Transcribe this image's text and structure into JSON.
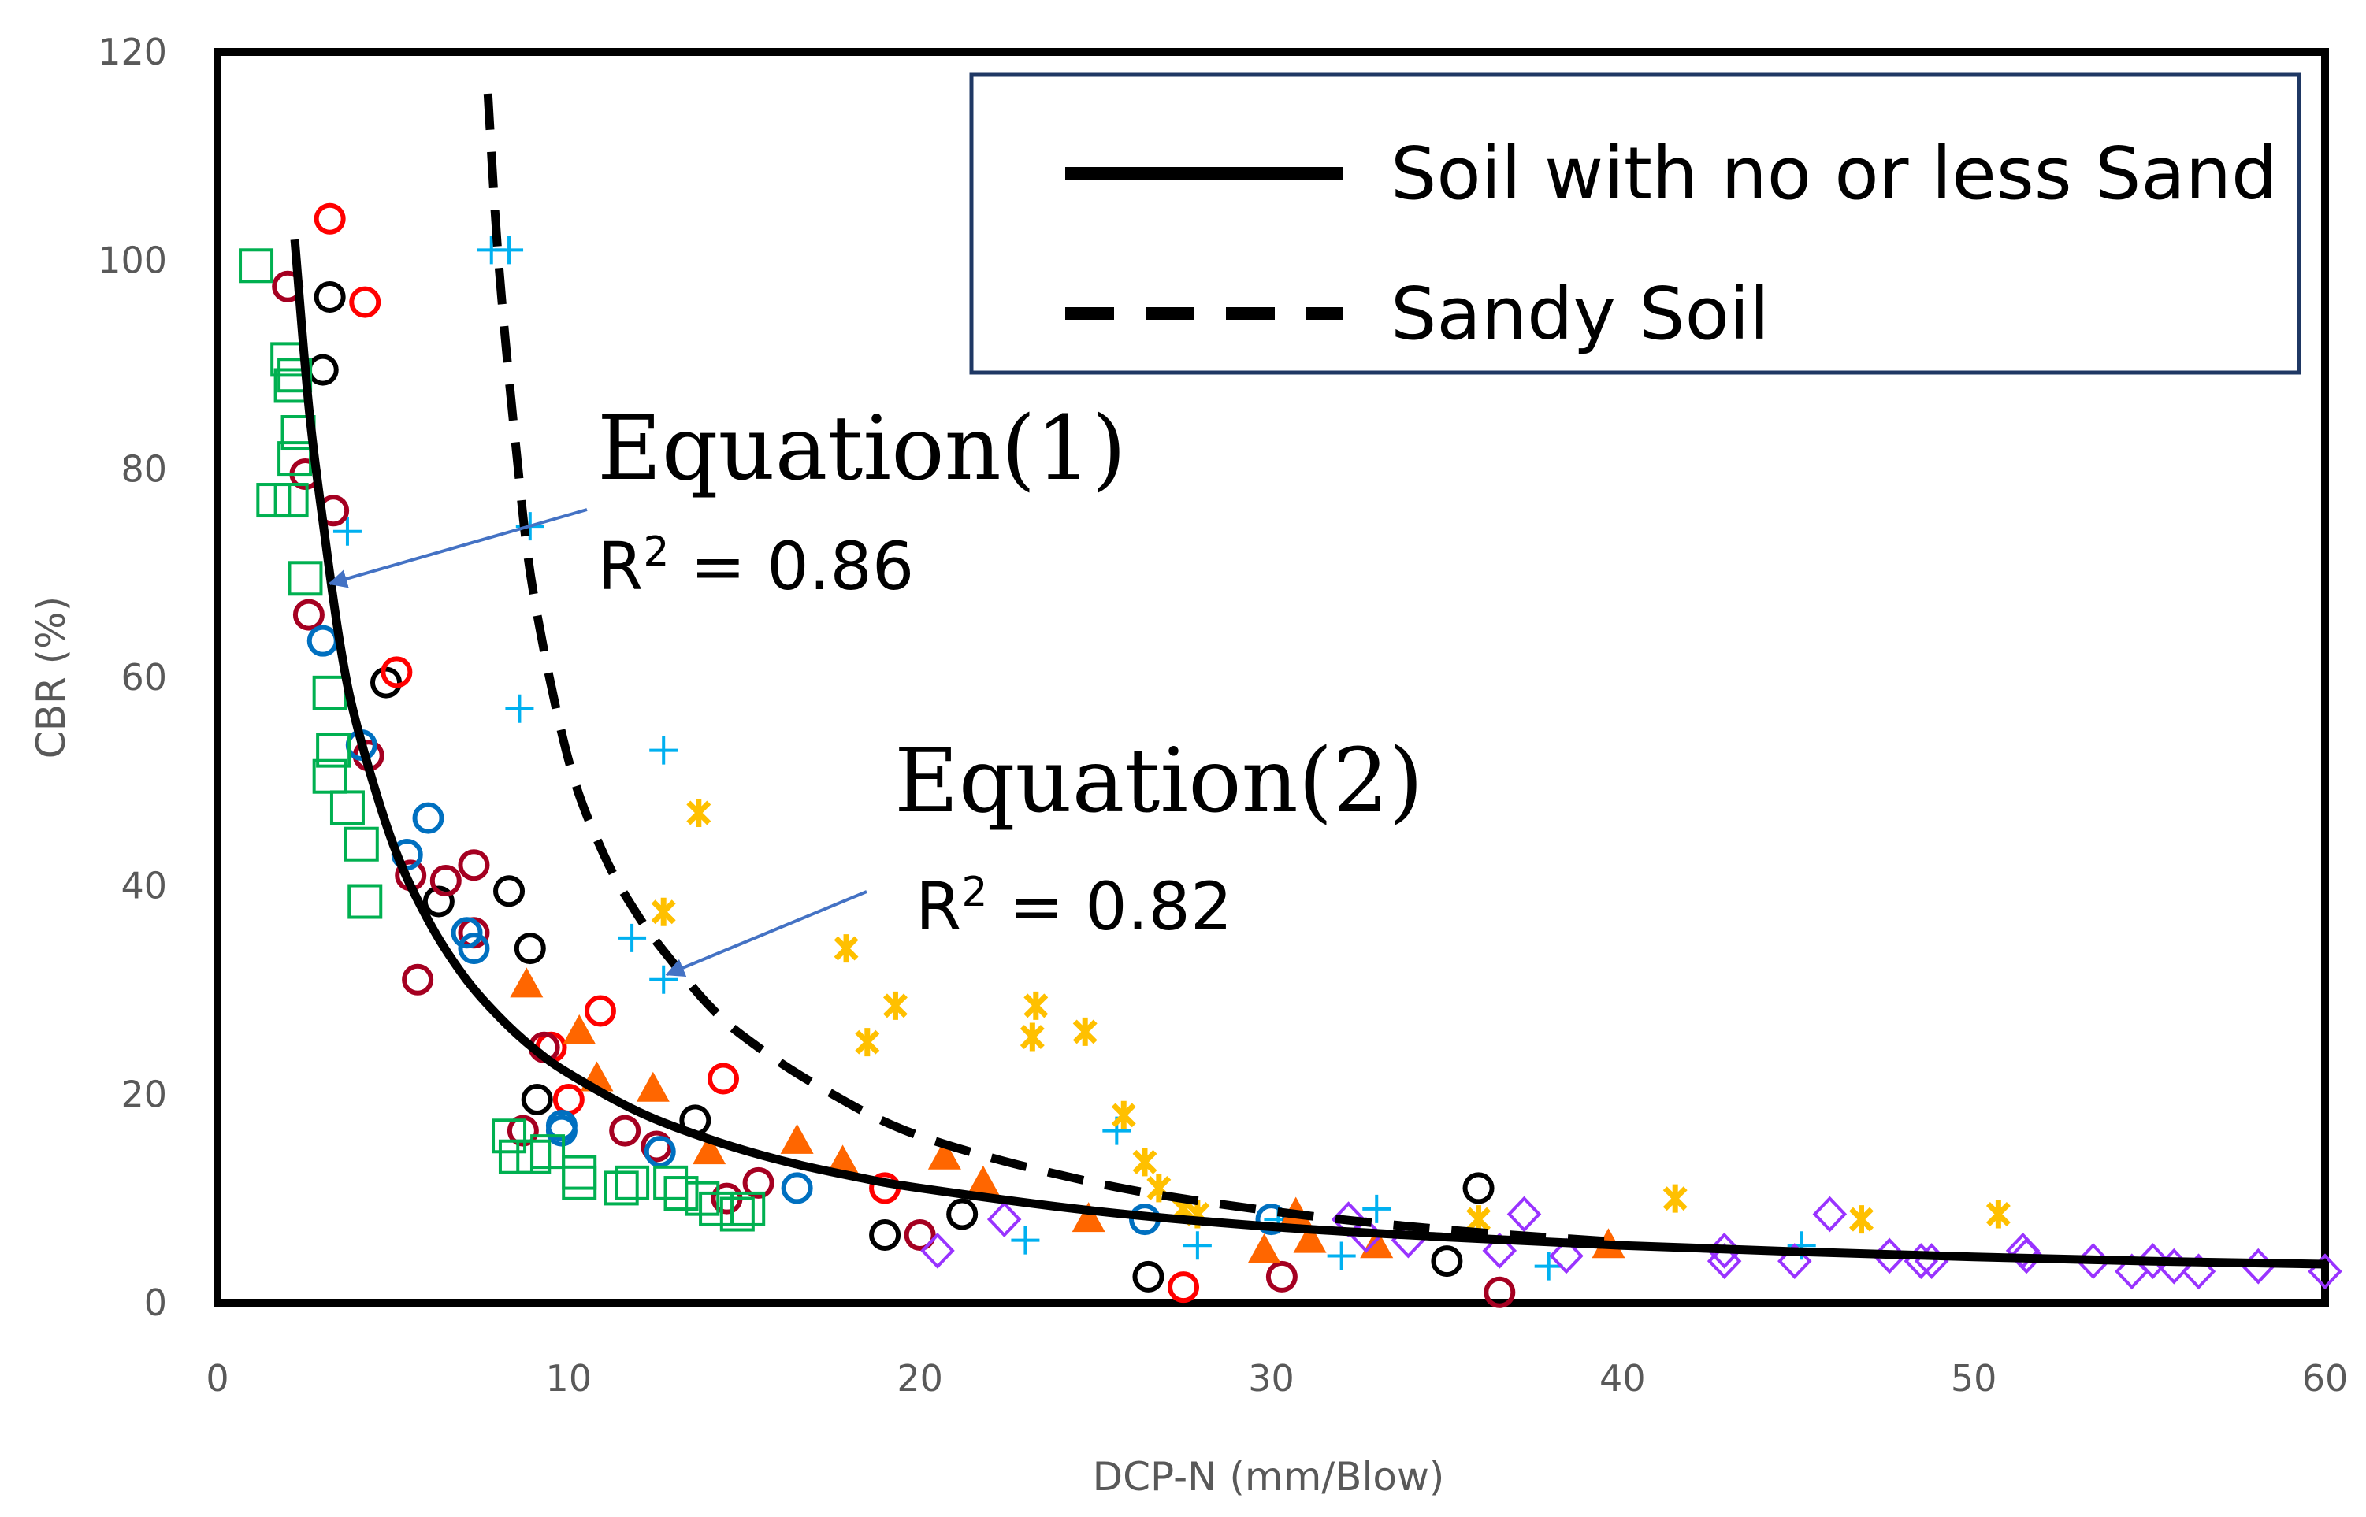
{
  "chart_data": {
    "type": "scatter",
    "title": "",
    "xlabel": "DCP-N (mm/Blow)",
    "ylabel": "CBR (%)",
    "xlim": [
      0,
      60
    ],
    "ylim": [
      0,
      120
    ],
    "x_ticks": [
      "0",
      "10",
      "20",
      "30",
      "40",
      "50",
      "60"
    ],
    "y_ticks": [
      "0",
      "20",
      "40",
      "60",
      "80",
      "100",
      "120"
    ],
    "legend": {
      "position": "top-right",
      "entries": [
        {
          "label": "Soil with no or less Sand",
          "style": "solid"
        },
        {
          "label": "Sandy Soil",
          "style": "dashed"
        }
      ]
    },
    "annotations": [
      {
        "title": "Equation(1)",
        "r2_prefix": "R",
        "r2_sup": "2",
        "r2_value": " = 0.86",
        "arrow_to": [
          3.2,
          69
        ]
      },
      {
        "title": "Equation(2)",
        "r2_prefix": "R",
        "r2_sup": "2",
        "r2_value": " = 0.82",
        "arrow_to": [
          12.8,
          31.5
        ]
      }
    ],
    "curves": [
      {
        "name": "Soil with no or less Sand",
        "style": "solid",
        "color": "#000000",
        "x": [
          2.2,
          2.6,
          3.0,
          3.5,
          4.0,
          5.0,
          6.0,
          7.0,
          8.0,
          9.0,
          10.0,
          12.0,
          14.0,
          16.0,
          18.0,
          20.0,
          25.0,
          30.0,
          35.0,
          40.0,
          45.0,
          50.0,
          55.0,
          60.0
        ],
        "y": [
          102,
          86,
          75,
          63,
          55,
          44,
          36.7,
          31.4,
          27.5,
          24.4,
          22,
          18.3,
          15.7,
          13.7,
          12.2,
          11,
          8.8,
          7.3,
          6.3,
          5.5,
          4.9,
          4.4,
          4.0,
          3.7
        ]
      },
      {
        "name": "Sandy Soil",
        "style": "dashed",
        "color": "#000000",
        "x": [
          7.7,
          8.0,
          8.5,
          9.0,
          10.0,
          11.0,
          12.0,
          13.0,
          14.0,
          15.0,
          17.0,
          20.0,
          25.0,
          30.0,
          35.0,
          40.0
        ],
        "y": [
          116,
          100,
          82,
          68,
          52,
          43,
          37,
          32.5,
          28.5,
          25.5,
          21,
          16,
          11.5,
          8.8,
          7.0,
          5.8
        ]
      }
    ],
    "series": [
      {
        "name": "blue-plus",
        "marker": "plus",
        "color": "#00b0f0",
        "points": [
          [
            7.8,
            101
          ],
          [
            8.3,
            101
          ],
          [
            3.7,
            74
          ],
          [
            8.9,
            74.5
          ],
          [
            8.6,
            57
          ],
          [
            12.7,
            53
          ],
          [
            11.8,
            35
          ],
          [
            12.7,
            31
          ],
          [
            25.6,
            16.5
          ],
          [
            23.0,
            6
          ],
          [
            27.9,
            5.5
          ],
          [
            32.0,
            4.5
          ],
          [
            33.0,
            9
          ],
          [
            37.9,
            3.5
          ],
          [
            45.1,
            5.5
          ],
          [
            30.2,
            8
          ]
        ]
      },
      {
        "name": "black-circle",
        "marker": "circle",
        "color": "#000000",
        "points": [
          [
            3.2,
            96.5
          ],
          [
            3.0,
            89.5
          ],
          [
            4.8,
            59.5
          ],
          [
            6.3,
            38.5
          ],
          [
            8.3,
            39.5
          ],
          [
            8.9,
            34
          ],
          [
            9.1,
            19.5
          ],
          [
            13.6,
            17.5
          ],
          [
            19.0,
            6.5
          ],
          [
            21.2,
            8.5
          ],
          [
            26.5,
            2.5
          ],
          [
            35.0,
            4
          ],
          [
            35.9,
            11
          ]
        ]
      },
      {
        "name": "red-circle",
        "marker": "circle",
        "color": "#ff0000",
        "points": [
          [
            3.2,
            104
          ],
          [
            4.2,
            96
          ],
          [
            5.1,
            60.5
          ],
          [
            9.5,
            24.5
          ],
          [
            10.0,
            19.5
          ],
          [
            10.9,
            28
          ],
          [
            14.4,
            21.5
          ],
          [
            19.0,
            11
          ],
          [
            27.5,
            1.5
          ]
        ]
      },
      {
        "name": "darkred-circle",
        "marker": "circle",
        "color": "#a50021",
        "points": [
          [
            2.0,
            97.5
          ],
          [
            2.5,
            79.5
          ],
          [
            3.3,
            76
          ],
          [
            2.6,
            66
          ],
          [
            4.3,
            52.5
          ],
          [
            5.5,
            41
          ],
          [
            6.5,
            40.5
          ],
          [
            7.3,
            42
          ],
          [
            5.7,
            31
          ],
          [
            7.3,
            35.5
          ],
          [
            9.3,
            24.5
          ],
          [
            8.7,
            16.5
          ],
          [
            11.6,
            16.5
          ],
          [
            12.5,
            15
          ],
          [
            14.5,
            10
          ],
          [
            15.4,
            11.5
          ],
          [
            20.0,
            6.5
          ],
          [
            30.3,
            2.5
          ],
          [
            36.5,
            1
          ]
        ]
      },
      {
        "name": "blue-circle",
        "marker": "circle",
        "color": "#0070c0",
        "points": [
          [
            3.0,
            63.5
          ],
          [
            4.1,
            53.5
          ],
          [
            5.4,
            43
          ],
          [
            6.0,
            46.5
          ],
          [
            7.1,
            35.5
          ],
          [
            7.3,
            34
          ],
          [
            9.8,
            17
          ],
          [
            9.8,
            16.5
          ],
          [
            12.6,
            14.5
          ],
          [
            16.5,
            11
          ],
          [
            26.4,
            8
          ],
          [
            30.0,
            8
          ]
        ]
      },
      {
        "name": "green-square",
        "marker": "square",
        "color": "#00b050",
        "points": [
          [
            1.1,
            99.5
          ],
          [
            2.0,
            90.5
          ],
          [
            2.2,
            89
          ],
          [
            2.1,
            88
          ],
          [
            2.3,
            83.5
          ],
          [
            2.2,
            81
          ],
          [
            1.6,
            77
          ],
          [
            2.1,
            77
          ],
          [
            2.5,
            69.5
          ],
          [
            3.2,
            58.5
          ],
          [
            3.3,
            53
          ],
          [
            3.2,
            50.5
          ],
          [
            3.7,
            47.5
          ],
          [
            4.1,
            44
          ],
          [
            4.2,
            38.5
          ],
          [
            8.3,
            16
          ],
          [
            8.5,
            14
          ],
          [
            9.0,
            14
          ],
          [
            9.4,
            14.5
          ],
          [
            10.3,
            12.5
          ],
          [
            10.3,
            11.5
          ],
          [
            11.5,
            11
          ],
          [
            11.8,
            11.5
          ],
          [
            12.9,
            11.5
          ],
          [
            13.2,
            10.5
          ],
          [
            13.8,
            10
          ],
          [
            14.2,
            9
          ],
          [
            14.8,
            8.5
          ],
          [
            15.1,
            9
          ]
        ]
      },
      {
        "name": "orange-triangle",
        "marker": "triangle",
        "color": "#ff6600",
        "points": [
          [
            8.8,
            30.5
          ],
          [
            10.3,
            26
          ],
          [
            10.8,
            21.5
          ],
          [
            12.4,
            20.5
          ],
          [
            14.0,
            14.5
          ],
          [
            16.5,
            15.5
          ],
          [
            17.8,
            13.5
          ],
          [
            20.7,
            14
          ],
          [
            21.8,
            11.5
          ],
          [
            24.8,
            8
          ],
          [
            29.8,
            5
          ],
          [
            30.7,
            8.5
          ],
          [
            31.1,
            6
          ],
          [
            33.0,
            5.5
          ],
          [
            39.6,
            5.5
          ]
        ]
      },
      {
        "name": "yellow-star",
        "marker": "star",
        "color": "#ffc000",
        "points": [
          [
            12.7,
            37.5
          ],
          [
            13.7,
            47
          ],
          [
            17.9,
            34
          ],
          [
            19.3,
            28.5
          ],
          [
            18.5,
            25
          ],
          [
            23.3,
            28.5
          ],
          [
            23.2,
            25.5
          ],
          [
            24.7,
            26
          ],
          [
            25.8,
            18
          ],
          [
            26.4,
            13.5
          ],
          [
            26.8,
            11
          ],
          [
            27.5,
            9
          ],
          [
            27.9,
            8.5
          ],
          [
            35.9,
            8
          ],
          [
            41.5,
            10
          ],
          [
            46.8,
            8
          ],
          [
            50.7,
            8.5
          ]
        ]
      },
      {
        "name": "purple-diamond",
        "marker": "diamond",
        "color": "#9933ff",
        "points": [
          [
            20.5,
            5
          ],
          [
            22.4,
            8
          ],
          [
            32.2,
            8
          ],
          [
            32.7,
            6.5
          ],
          [
            33.9,
            6
          ],
          [
            36.5,
            5
          ],
          [
            37.2,
            8.5
          ],
          [
            38.4,
            4.5
          ],
          [
            42.9,
            5
          ],
          [
            42.9,
            4
          ],
          [
            44.9,
            4
          ],
          [
            45.9,
            8.5
          ],
          [
            47.6,
            4.5
          ],
          [
            48.5,
            4
          ],
          [
            48.8,
            4
          ],
          [
            51.4,
            5
          ],
          [
            51.5,
            4.5
          ],
          [
            53.4,
            4
          ],
          [
            54.5,
            3
          ],
          [
            55.1,
            4
          ],
          [
            55.7,
            3.5
          ],
          [
            56.4,
            3
          ],
          [
            58.1,
            3.5
          ],
          [
            60.0,
            3
          ]
        ]
      }
    ]
  }
}
